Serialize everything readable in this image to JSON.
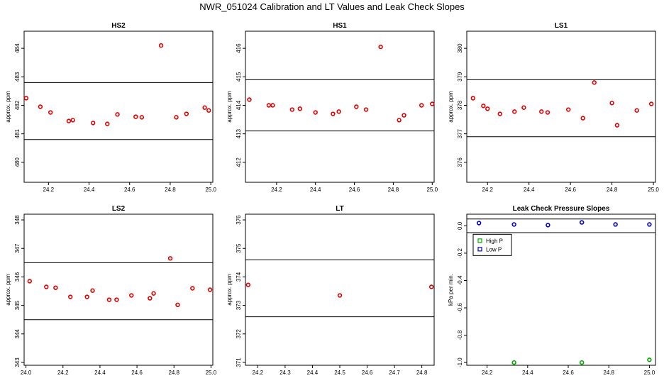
{
  "figure": {
    "title": "NWR_051024  Calibration and LT Values and Leak Check Slopes",
    "colors": {
      "points": "#e00000",
      "limit_lines": "#000000",
      "high_p": "#00aa00",
      "low_p": "#0000cc"
    }
  },
  "chart_data": [
    {
      "type": "scatter",
      "title": "HS2",
      "ylabel": "approx. ppm",
      "xlim": [
        24.08,
        25.01
      ],
      "ylim": [
        479.3,
        484.6
      ],
      "xticks": [
        24.2,
        24.4,
        24.6,
        24.8,
        25.0
      ],
      "xtick_labels": [
        "24.2",
        "24.4",
        "24.6",
        "24.8",
        "25.0"
      ],
      "yticks": [
        480,
        481,
        482,
        483,
        484
      ],
      "ytick_labels": [
        "480",
        "481",
        "482",
        "483",
        "484"
      ],
      "hlines": [
        482.8,
        480.8
      ],
      "series": [
        {
          "color": "#e00000",
          "marker": "circle",
          "x": [
            24.09,
            24.16,
            24.21,
            24.3,
            24.32,
            24.42,
            24.49,
            24.54,
            24.63,
            24.66,
            24.755,
            24.83,
            24.88,
            24.97,
            24.99
          ],
          "y": [
            482.25,
            481.95,
            481.75,
            481.45,
            481.48,
            481.38,
            481.35,
            481.68,
            481.6,
            481.58,
            484.1,
            481.58,
            481.7,
            481.92,
            481.82
          ]
        }
      ]
    },
    {
      "type": "scatter",
      "title": "HS1",
      "ylabel": "approx. ppm",
      "xlim": [
        24.04,
        25.01
      ],
      "ylim": [
        411.3,
        416.6
      ],
      "xticks": [
        24.2,
        24.4,
        24.6,
        24.8,
        25.0
      ],
      "xtick_labels": [
        "24.2",
        "24.4",
        "24.6",
        "24.8",
        "25.0"
      ],
      "yticks": [
        412,
        413,
        414,
        415,
        416
      ],
      "ytick_labels": [
        "412",
        "413",
        "414",
        "415",
        "416"
      ],
      "hlines": [
        414.9,
        413.1
      ],
      "series": [
        {
          "color": "#e00000",
          "marker": "circle",
          "x": [
            24.06,
            24.16,
            24.18,
            24.28,
            24.32,
            24.4,
            24.49,
            24.52,
            24.61,
            24.66,
            24.735,
            24.83,
            24.855,
            24.945,
            25.0
          ],
          "y": [
            414.2,
            414.0,
            414.0,
            413.85,
            413.88,
            413.75,
            413.7,
            413.78,
            413.95,
            413.85,
            416.05,
            413.48,
            413.65,
            414.0,
            414.05
          ]
        }
      ]
    },
    {
      "type": "scatter",
      "title": "LS1",
      "ylabel": "approx. ppm",
      "xlim": [
        24.1,
        25.01
      ],
      "ylim": [
        375.3,
        380.6
      ],
      "xticks": [
        24.2,
        24.4,
        24.6,
        24.8,
        25.0
      ],
      "xtick_labels": [
        "24.2",
        "24.4",
        "24.6",
        "24.8",
        "25.0"
      ],
      "yticks": [
        376,
        377,
        378,
        379,
        380
      ],
      "ytick_labels": [
        "376",
        "377",
        "378",
        "379",
        "380"
      ],
      "hlines": [
        378.9,
        376.9
      ],
      "series": [
        {
          "color": "#e00000",
          "marker": "circle",
          "x": [
            24.13,
            24.18,
            24.2,
            24.26,
            24.33,
            24.375,
            24.46,
            24.49,
            24.59,
            24.66,
            24.715,
            24.8,
            24.825,
            24.92,
            24.99
          ],
          "y": [
            378.25,
            377.98,
            377.88,
            377.7,
            377.78,
            377.92,
            377.78,
            377.75,
            377.85,
            377.55,
            378.8,
            378.08,
            377.3,
            377.82,
            378.05
          ]
        }
      ]
    },
    {
      "type": "scatter",
      "title": "LS2",
      "ylabel": "approx. ppm",
      "xlim": [
        23.99,
        25.01
      ],
      "ylim": [
        342.9,
        348.2
      ],
      "xticks": [
        24.0,
        24.2,
        24.4,
        24.6,
        24.8,
        25.0
      ],
      "xtick_labels": [
        "24.0",
        "24.2",
        "24.4",
        "24.6",
        "24.8",
        "25.0"
      ],
      "yticks": [
        343,
        344,
        345,
        346,
        347,
        348
      ],
      "ytick_labels": [
        "343",
        "344",
        "345",
        "346",
        "347",
        "348"
      ],
      "hlines": [
        346.5,
        344.5
      ],
      "series": [
        {
          "color": "#e00000",
          "marker": "circle",
          "x": [
            24.02,
            24.11,
            24.16,
            24.24,
            24.33,
            24.36,
            24.45,
            24.49,
            24.57,
            24.67,
            24.69,
            24.78,
            24.82,
            24.9,
            24.995
          ],
          "y": [
            345.85,
            345.65,
            345.62,
            345.3,
            345.3,
            345.52,
            345.2,
            345.2,
            345.35,
            345.25,
            345.42,
            346.65,
            345.02,
            345.6,
            345.55
          ]
        }
      ]
    },
    {
      "type": "scatter",
      "title": "LT",
      "ylabel": "approx. ppm",
      "xlim": [
        24.155,
        24.845
      ],
      "ylim": [
        370.9,
        376.2
      ],
      "xticks": [
        24.2,
        24.3,
        24.4,
        24.5,
        24.6,
        24.7,
        24.8
      ],
      "xtick_labels": [
        "24.2",
        "24.3",
        "24.4",
        "24.5",
        "24.6",
        "24.7",
        "24.8"
      ],
      "yticks": [
        371,
        372,
        373,
        374,
        375,
        376
      ],
      "ytick_labels": [
        "371",
        "372",
        "373",
        "374",
        "375",
        "376"
      ],
      "hlines": [
        374.6,
        372.6
      ],
      "series": [
        {
          "color": "#e00000",
          "marker": "circle",
          "x": [
            24.165,
            24.5,
            24.835
          ],
          "y": [
            373.72,
            373.35,
            373.65
          ]
        }
      ]
    },
    {
      "type": "scatter",
      "title": "Leak Check Pressure Slopes",
      "ylabel": "kPa per min.",
      "xlim": [
        24.1,
        25.03
      ],
      "ylim": [
        -1.02,
        0.085
      ],
      "xticks": [
        24.2,
        24.4,
        24.6,
        24.8,
        25.0
      ],
      "xtick_labels": [
        "24.2",
        "24.4",
        "24.6",
        "24.8",
        "25.0"
      ],
      "yticks": [
        0.0,
        -0.2,
        -0.4,
        -0.6,
        -0.8,
        -1.0
      ],
      "ytick_labels": [
        "0.0",
        "-0.2",
        "-0.4",
        "-0.6",
        "-0.8",
        "-1.0"
      ],
      "hlines": [
        0.05,
        -0.05
      ],
      "legend": {
        "placement": "top-left",
        "entries": [
          "High P",
          "Low P"
        ]
      },
      "series": [
        {
          "name": "High P",
          "color": "#00aa00",
          "marker": "circle",
          "x": [
            24.333,
            24.667,
            25.0
          ],
          "y": [
            -1.0,
            -1.0,
            -0.98
          ]
        },
        {
          "name": "Low P",
          "color": "#0000cc",
          "marker": "circle",
          "x": [
            24.16,
            24.333,
            24.5,
            24.667,
            24.833,
            25.0
          ],
          "y": [
            0.02,
            0.01,
            0.005,
            0.025,
            0.01,
            0.01
          ]
        }
      ]
    }
  ]
}
